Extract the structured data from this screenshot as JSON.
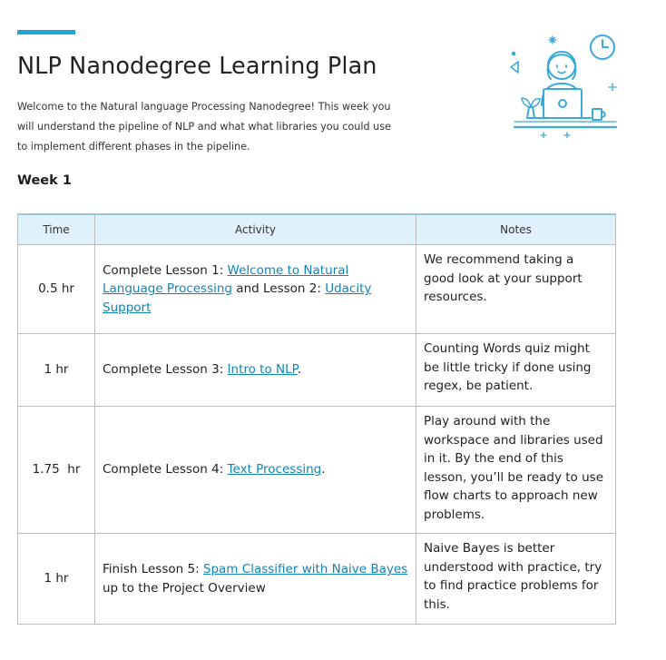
{
  "document": {
    "title": "NLP Nanodegree Learning Plan",
    "intro_line1": "Welcome to the Natural language Processing  Nanodegree!  This week you",
    "intro_line2": "will understand the pipeline of NLP and what what libraries you could use",
    "intro_line3": "to implement different phases in the pipeline.",
    "week_heading": "Week 1"
  },
  "colors": {
    "accent": "#1ea7d6",
    "header_bg": "#dff1fb",
    "link": "#1384b6",
    "illustration_stroke": "#3aa8d8"
  },
  "illustration": {
    "icon_name": "person-at-laptop-icon"
  },
  "table": {
    "headers": [
      "Time",
      "Activity",
      "Notes"
    ],
    "rows": [
      {
        "time": "0.5 hr",
        "activity": {
          "prefix": "Complete Lesson 1: ",
          "link1": "Welcome to Natural Language Processing",
          "middle": " and Lesson 2: ",
          "link2": "Udacity Support"
        },
        "notes": "We recommend taking a good look at your support resources."
      },
      {
        "time": "1 hr",
        "activity": {
          "prefix": "Complete Lesson 3: ",
          "link1": "Intro to NLP",
          "suffix": "."
        },
        "notes": "Counting Words quiz might be little tricky if done using regex, be patient."
      },
      {
        "time": "1.75  hr",
        "activity": {
          "prefix": "Complete Lesson 4: ",
          "link1": "Text Processing",
          "suffix": "."
        },
        "notes": "Play around with the workspace and libraries used in it. By the end of this lesson, you’ll be ready to use flow charts to approach new problems."
      },
      {
        "time": "1 hr",
        "activity": {
          "prefix": "Finish Lesson 5: ",
          "link1": "Spam Classifier with Naive Bayes",
          "suffix": " up to the Project Overview"
        },
        "notes": "Naive Bayes is better understood with practice, try to find practice problems for this."
      }
    ]
  }
}
